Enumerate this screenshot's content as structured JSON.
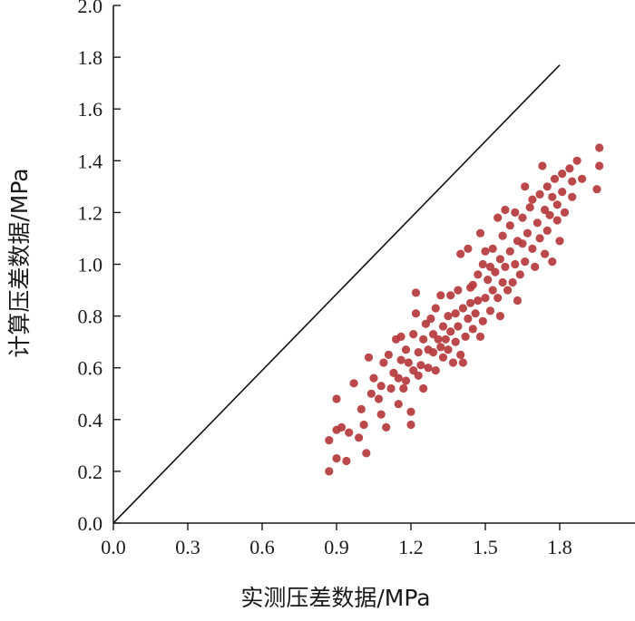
{
  "chart_data": {
    "type": "scatter",
    "title": "",
    "xlabel": "实测压差数据/MPa",
    "ylabel": "计算压差数据/MPa",
    "xlim": [
      0.0,
      2.1
    ],
    "ylim": [
      0.0,
      2.0
    ],
    "xticks": [
      "0.0",
      "0.3",
      "0.6",
      "0.9",
      "1.2",
      "1.5",
      "1.8"
    ],
    "yticks": [
      "0.0",
      "0.2",
      "0.4",
      "0.6",
      "0.8",
      "1.0",
      "1.2",
      "1.4",
      "1.6",
      "1.8",
      "2.0"
    ],
    "grid": false,
    "legend": "none",
    "point_color": "#b5393c",
    "reference_line": {
      "x": [
        0.0,
        1.8
      ],
      "y": [
        0.0,
        1.77
      ]
    },
    "series": [
      {
        "name": "",
        "points": [
          [
            0.87,
            0.2
          ],
          [
            0.87,
            0.32
          ],
          [
            0.9,
            0.25
          ],
          [
            0.9,
            0.36
          ],
          [
            0.9,
            0.48
          ],
          [
            0.92,
            0.37
          ],
          [
            0.94,
            0.24
          ],
          [
            0.95,
            0.35
          ],
          [
            0.97,
            0.54
          ],
          [
            0.99,
            0.33
          ],
          [
            1.0,
            0.44
          ],
          [
            1.01,
            0.38
          ],
          [
            1.02,
            0.27
          ],
          [
            1.03,
            0.64
          ],
          [
            1.04,
            0.5
          ],
          [
            1.05,
            0.56
          ],
          [
            1.07,
            0.48
          ],
          [
            1.08,
            0.53
          ],
          [
            1.08,
            0.42
          ],
          [
            1.09,
            0.62
          ],
          [
            1.1,
            0.37
          ],
          [
            1.11,
            0.65
          ],
          [
            1.12,
            0.52
          ],
          [
            1.13,
            0.58
          ],
          [
            1.14,
            0.71
          ],
          [
            1.15,
            0.46
          ],
          [
            1.15,
            0.56
          ],
          [
            1.16,
            0.63
          ],
          [
            1.16,
            0.72
          ],
          [
            1.17,
            0.52
          ],
          [
            1.18,
            0.55
          ],
          [
            1.18,
            0.67
          ],
          [
            1.19,
            0.62
          ],
          [
            1.2,
            0.43
          ],
          [
            1.2,
            0.38
          ],
          [
            1.21,
            0.59
          ],
          [
            1.21,
            0.73
          ],
          [
            1.22,
            0.89
          ],
          [
            1.22,
            0.81
          ],
          [
            1.23,
            0.66
          ],
          [
            1.23,
            0.57
          ],
          [
            1.24,
            0.61
          ],
          [
            1.25,
            0.71
          ],
          [
            1.25,
            0.52
          ],
          [
            1.26,
            0.77
          ],
          [
            1.27,
            0.67
          ],
          [
            1.27,
            0.6
          ],
          [
            1.28,
            0.79
          ],
          [
            1.29,
            0.73
          ],
          [
            1.29,
            0.66
          ],
          [
            1.3,
            0.83
          ],
          [
            1.3,
            0.59
          ],
          [
            1.31,
            0.71
          ],
          [
            1.32,
            0.68
          ],
          [
            1.32,
            0.88
          ],
          [
            1.33,
            0.76
          ],
          [
            1.33,
            0.64
          ],
          [
            1.34,
            0.71
          ],
          [
            1.35,
            0.8
          ],
          [
            1.35,
            0.67
          ],
          [
            1.36,
            0.88
          ],
          [
            1.36,
            0.74
          ],
          [
            1.37,
            0.62
          ],
          [
            1.38,
            0.81
          ],
          [
            1.38,
            0.7
          ],
          [
            1.39,
            0.9
          ],
          [
            1.39,
            0.76
          ],
          [
            1.4,
            0.65
          ],
          [
            1.4,
            1.04
          ],
          [
            1.41,
            0.83
          ],
          [
            1.41,
            0.62
          ],
          [
            1.42,
            0.72
          ],
          [
            1.43,
            1.06
          ],
          [
            1.43,
            0.79
          ],
          [
            1.44,
            0.91
          ],
          [
            1.44,
            0.85
          ],
          [
            1.45,
            0.75
          ],
          [
            1.45,
            0.92
          ],
          [
            1.46,
            0.81
          ],
          [
            1.47,
            0.96
          ],
          [
            1.47,
            0.86
          ],
          [
            1.48,
            0.72
          ],
          [
            1.48,
            1.12
          ],
          [
            1.49,
            1.0
          ],
          [
            1.49,
            0.78
          ],
          [
            1.5,
            0.87
          ],
          [
            1.5,
            1.05
          ],
          [
            1.51,
            0.94
          ],
          [
            1.52,
            0.82
          ],
          [
            1.52,
            0.99
          ],
          [
            1.53,
            1.06
          ],
          [
            1.53,
            0.9
          ],
          [
            1.54,
            0.97
          ],
          [
            1.55,
            0.87
          ],
          [
            1.55,
            1.18
          ],
          [
            1.56,
            0.8
          ],
          [
            1.56,
            1.02
          ],
          [
            1.57,
            0.93
          ],
          [
            1.57,
            1.11
          ],
          [
            1.58,
            1.21
          ],
          [
            1.58,
            0.99
          ],
          [
            1.59,
            0.9
          ],
          [
            1.6,
            1.05
          ],
          [
            1.6,
            1.15
          ],
          [
            1.61,
            0.93
          ],
          [
            1.62,
            1.2
          ],
          [
            1.62,
            1.0
          ],
          [
            1.63,
            0.86
          ],
          [
            1.63,
            1.09
          ],
          [
            1.64,
            0.96
          ],
          [
            1.65,
            1.18
          ],
          [
            1.65,
            1.08
          ],
          [
            1.66,
            1.3
          ],
          [
            1.66,
            1.01
          ],
          [
            1.67,
            1.12
          ],
          [
            1.68,
            1.22
          ],
          [
            1.69,
            1.06
          ],
          [
            1.69,
            1.25
          ],
          [
            1.7,
            0.99
          ],
          [
            1.71,
            1.16
          ],
          [
            1.72,
            1.1
          ],
          [
            1.72,
            1.27
          ],
          [
            1.73,
            1.38
          ],
          [
            1.74,
            1.21
          ],
          [
            1.74,
            1.04
          ],
          [
            1.75,
            1.3
          ],
          [
            1.75,
            1.13
          ],
          [
            1.76,
            1.19
          ],
          [
            1.77,
            1.26
          ],
          [
            1.77,
            1.01
          ],
          [
            1.78,
            1.33
          ],
          [
            1.79,
            1.17
          ],
          [
            1.79,
            1.23
          ],
          [
            1.8,
            1.09
          ],
          [
            1.81,
            1.35
          ],
          [
            1.81,
            1.28
          ],
          [
            1.82,
            1.2
          ],
          [
            1.84,
            1.37
          ],
          [
            1.85,
            1.26
          ],
          [
            1.85,
            1.32
          ],
          [
            1.87,
            1.4
          ],
          [
            1.89,
            1.33
          ],
          [
            1.95,
            1.29
          ],
          [
            1.96,
            1.38
          ],
          [
            1.96,
            1.45
          ]
        ]
      }
    ]
  }
}
